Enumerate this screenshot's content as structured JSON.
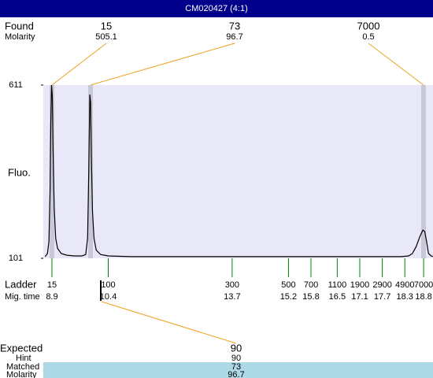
{
  "title": "CM020427 (4:1)",
  "found": {
    "label": "Found",
    "molarity_label": "Molarity",
    "peaks": [
      {
        "size": 15,
        "molarity": 505.1
      },
      {
        "size": 73,
        "molarity": 96.7
      },
      {
        "size": 7000,
        "molarity": 0.5
      }
    ]
  },
  "chart_data": {
    "type": "line",
    "y_label": "Fluo.",
    "x": [
      8.72,
      8.78,
      8.82,
      8.85,
      8.87,
      8.89,
      8.91,
      8.93,
      8.96,
      9.0,
      9.05,
      9.15,
      9.3,
      9.5,
      9.7,
      9.8,
      9.85,
      9.88,
      9.91,
      9.93,
      9.95,
      9.98,
      10.02,
      10.08,
      10.2,
      10.4,
      11,
      13,
      15,
      17,
      18.2,
      18.4,
      18.5,
      18.6,
      18.7,
      18.78,
      18.83,
      18.88,
      18.93,
      19.0,
      19.05
    ],
    "series": [
      {
        "color": "#000000",
        "values": [
          106,
          115,
          150,
          300,
          500,
          611,
          580,
          420,
          250,
          160,
          130,
          115,
          110,
          108,
          108,
          112,
          160,
          350,
          583,
          560,
          400,
          240,
          160,
          125,
          112,
          108,
          106,
          106,
          106,
          106,
          106,
          108,
          115,
          135,
          165,
          184,
          180,
          150,
          115,
          108,
          106
        ]
      }
    ],
    "xlim": [
      8.67,
      19.05
    ],
    "ylim": [
      101,
      611
    ],
    "yticks": [
      101,
      611
    ]
  },
  "ladder": {
    "label": "Ladder",
    "time_label": "Mig. time",
    "sizes": [
      15,
      100,
      300,
      500,
      700,
      1100,
      1900,
      2900,
      4900,
      7000
    ],
    "times": [
      8.9,
      10.4,
      13.7,
      15.2,
      15.8,
      16.5,
      17.1,
      17.7,
      18.3,
      18.8
    ]
  },
  "expected": {
    "label": "Expected",
    "value": 90,
    "hint_label": "Hint",
    "hint": 90,
    "matched_label": "Matched",
    "matched": 73,
    "molarity_label": "Molarity",
    "molarity": 96.7
  }
}
